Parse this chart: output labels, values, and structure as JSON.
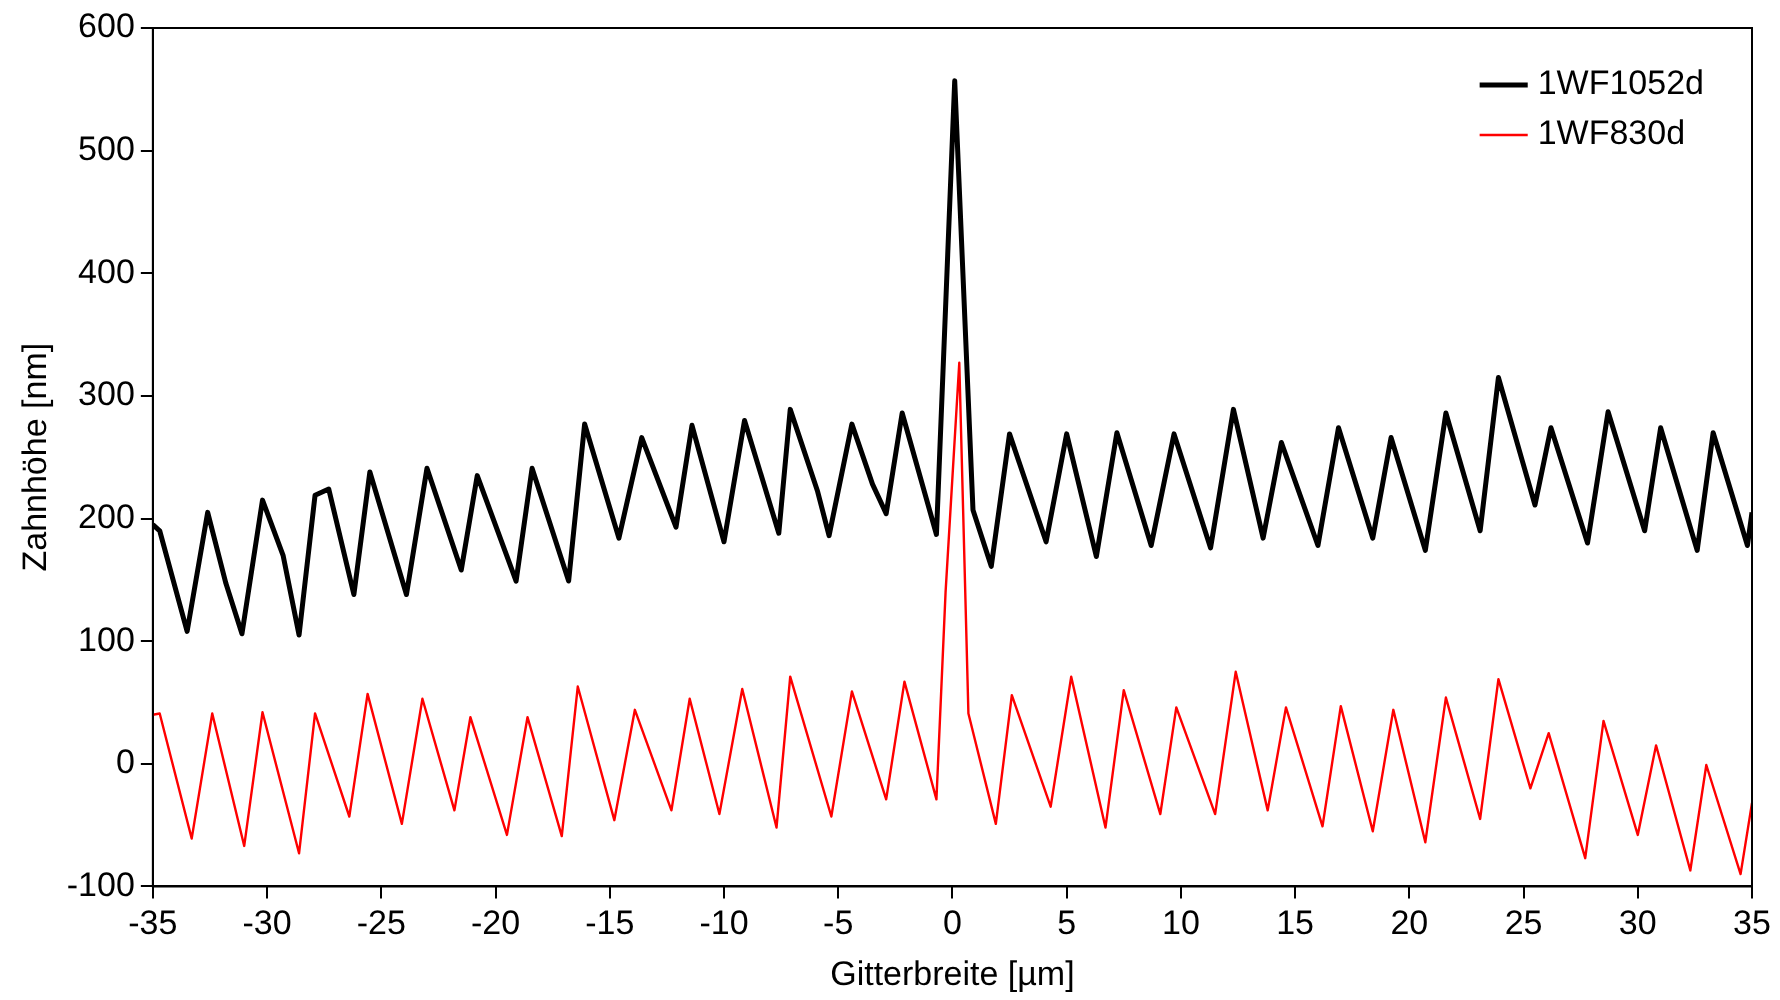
{
  "chart_data": {
    "type": "line",
    "xlabel": "Gitterbreite [µm]",
    "ylabel": "Zahnhöhe [nm]",
    "xlim": [
      -35,
      35
    ],
    "xticks": [
      -35,
      -30,
      -25,
      -20,
      -15,
      -10,
      -5,
      0,
      5,
      10,
      15,
      20,
      25,
      30,
      35
    ],
    "ylim": [
      -100,
      600
    ],
    "yticks": [
      -100,
      0,
      100,
      200,
      300,
      400,
      500,
      600
    ],
    "grid": false,
    "legend": "top right",
    "marker": "none",
    "line_style": "solid",
    "series": [
      {
        "name": "1WF1052d",
        "color": "#000000",
        "x": [
          -35,
          -34.7,
          -33.5,
          -32.6,
          -31.8,
          -31.1,
          -30.2,
          -29.3,
          -28.6,
          -27.9,
          -27.3,
          -26.2,
          -25.5,
          -23.9,
          -23.0,
          -21.5,
          -20.8,
          -19.1,
          -18.4,
          -16.8,
          -16.1,
          -14.6,
          -13.6,
          -12.1,
          -11.4,
          -10.0,
          -9.1,
          -7.6,
          -7.1,
          -5.9,
          -5.4,
          -4.4,
          -3.5,
          -2.9,
          -2.2,
          -0.7,
          0.1,
          0.9,
          1.7,
          2.5,
          4.1,
          5.0,
          6.3,
          7.2,
          8.7,
          9.7,
          11.3,
          12.3,
          13.6,
          14.4,
          16.0,
          16.9,
          18.4,
          19.2,
          20.7,
          21.6,
          23.1,
          23.9,
          25.5,
          26.2,
          27.8,
          28.7,
          30.3,
          31.0,
          32.6,
          33.3,
          34.8,
          35
        ],
        "values": [
          195,
          190,
          108,
          205,
          147,
          106,
          215,
          170,
          105,
          219,
          224,
          138,
          238,
          138,
          241,
          158,
          235,
          149,
          241,
          149,
          277,
          184,
          266,
          193,
          276,
          181,
          280,
          188,
          289,
          222,
          186,
          277,
          228,
          204,
          286,
          187,
          557,
          207,
          161,
          269,
          181,
          269,
          169,
          270,
          178,
          269,
          176,
          289,
          184,
          262,
          178,
          274,
          184,
          266,
          174,
          286,
          190,
          315,
          211,
          274,
          180,
          287,
          190,
          274,
          174,
          270,
          178,
          205
        ]
      },
      {
        "name": "1WF830d",
        "color": "#ff0000",
        "x": [
          -35,
          -34.7,
          -33.3,
          -32.4,
          -31.0,
          -30.2,
          -28.6,
          -27.9,
          -26.4,
          -25.6,
          -24.1,
          -23.2,
          -21.8,
          -21.1,
          -19.5,
          -18.6,
          -17.1,
          -16.4,
          -14.8,
          -13.9,
          -12.3,
          -11.5,
          -10.2,
          -9.2,
          -7.7,
          -7.1,
          -5.3,
          -4.4,
          -2.9,
          -2.1,
          -0.7,
          -0.3,
          0.3,
          0.7,
          1.9,
          2.6,
          4.3,
          5.2,
          6.7,
          7.5,
          9.1,
          9.8,
          11.5,
          12.4,
          13.8,
          14.6,
          16.2,
          17.0,
          18.4,
          19.3,
          20.7,
          21.6,
          23.1,
          23.9,
          25.3,
          26.1,
          27.7,
          28.5,
          30.0,
          30.8,
          32.3,
          33.0,
          34.5,
          35
        ],
        "values": [
          40,
          41,
          -61,
          41,
          -67,
          42,
          -73,
          41,
          -43,
          57,
          -49,
          53,
          -38,
          38,
          -58,
          38,
          -59,
          63,
          -46,
          44,
          -38,
          53,
          -41,
          61,
          -52,
          71,
          -43,
          59,
          -29,
          67,
          -29,
          140,
          327,
          41,
          -49,
          56,
          -35,
          71,
          -52,
          60,
          -41,
          46,
          -41,
          75,
          -38,
          46,
          -51,
          47,
          -55,
          44,
          -64,
          54,
          -45,
          69,
          -20,
          25,
          -77,
          35,
          -58,
          15,
          -87,
          -1,
          -90,
          -32
        ]
      }
    ]
  }
}
